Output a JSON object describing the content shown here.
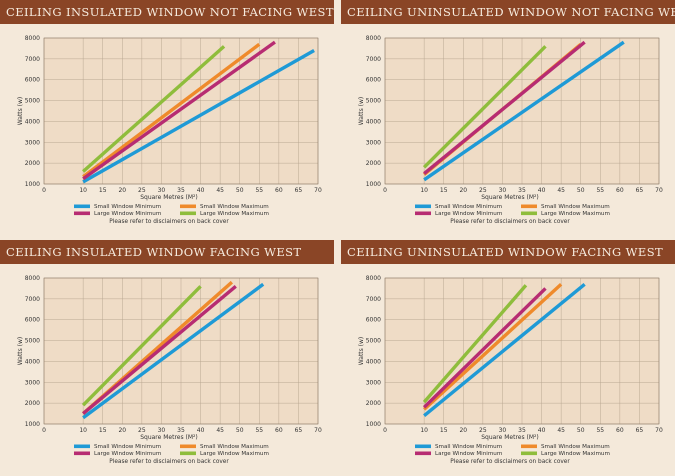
{
  "colors": {
    "small_min": "#1f9ad6",
    "small_max": "#ef8a2b",
    "large_min": "#b72c72",
    "large_max": "#8fbd3c",
    "banner": "#8a4526",
    "plot_bg": "#efdcc6",
    "grid": "#b9a792"
  },
  "legend": {
    "small_min": "Small Window Minimum",
    "small_max": "Small Window Maximum",
    "large_min": "Large Window Minimum",
    "large_max": "Large Window Maximum"
  },
  "note": "Please refer to disclaimers on back cover",
  "chart_data": [
    {
      "type": "line",
      "title": "CEILING INSULATED WINDOW NOT FACING WEST",
      "xlabel": "Square Metres (M²)",
      "ylabel": "Watts (w)",
      "xlim": [
        0,
        70
      ],
      "ylim": [
        1000,
        8000
      ],
      "xticks": [
        "0",
        "10",
        "15",
        "20",
        "25",
        "30",
        "35",
        "40",
        "45",
        "50",
        "55",
        "60",
        "65",
        "70"
      ],
      "yticks": [
        "1000",
        "2000",
        "3000",
        "4000",
        "5000",
        "6000",
        "7000",
        "8000"
      ],
      "series": [
        {
          "name": "Small Window Minimum",
          "key": "small_min",
          "x": [
            10,
            69
          ],
          "y": [
            1100,
            7400
          ]
        },
        {
          "name": "Small Window Maximum",
          "key": "small_max",
          "x": [
            10,
            55
          ],
          "y": [
            1350,
            7700
          ]
        },
        {
          "name": "Large Window Minimum",
          "key": "large_min",
          "x": [
            10,
            59
          ],
          "y": [
            1250,
            7800
          ]
        },
        {
          "name": "Large Window Maximum",
          "key": "large_max",
          "x": [
            10,
            46
          ],
          "y": [
            1600,
            7600
          ]
        }
      ]
    },
    {
      "type": "line",
      "title": "CEILING UNINSULATED WINDOW NOT FACING WEST",
      "xlabel": "Square Metres (M²)",
      "ylabel": "Watts (w)",
      "xlim": [
        0,
        70
      ],
      "ylim": [
        1000,
        8000
      ],
      "xticks": [
        "0",
        "10",
        "15",
        "20",
        "25",
        "30",
        "35",
        "40",
        "45",
        "50",
        "55",
        "60",
        "65",
        "70"
      ],
      "yticks": [
        "1000",
        "2000",
        "3000",
        "4000",
        "5000",
        "6000",
        "7000",
        "8000"
      ],
      "series": [
        {
          "name": "Small Window Minimum",
          "key": "small_min",
          "x": [
            10,
            61
          ],
          "y": [
            1200,
            7800
          ]
        },
        {
          "name": "Small Window Maximum",
          "key": "small_max",
          "x": [
            10,
            50
          ],
          "y": [
            1450,
            7700
          ]
        },
        {
          "name": "Large Window Minimum",
          "key": "large_min",
          "x": [
            10,
            51
          ],
          "y": [
            1500,
            7800
          ]
        },
        {
          "name": "Large Window Maximum",
          "key": "large_max",
          "x": [
            10,
            41
          ],
          "y": [
            1800,
            7600
          ]
        }
      ]
    },
    {
      "type": "line",
      "title": "CEILING INSULATED WINDOW FACING WEST",
      "xlabel": "Square Metres (M²)",
      "ylabel": "Watts (w)",
      "xlim": [
        0,
        70
      ],
      "ylim": [
        1000,
        8000
      ],
      "xticks": [
        "0",
        "10",
        "15",
        "20",
        "25",
        "30",
        "35",
        "40",
        "45",
        "50",
        "55",
        "60",
        "65",
        "70"
      ],
      "yticks": [
        "1000",
        "2000",
        "3000",
        "4000",
        "5000",
        "6000",
        "7000",
        "8000"
      ],
      "series": [
        {
          "name": "Small Window Minimum",
          "key": "small_min",
          "x": [
            10,
            56
          ],
          "y": [
            1300,
            7700
          ]
        },
        {
          "name": "Small Window Maximum",
          "key": "small_max",
          "x": [
            10,
            48
          ],
          "y": [
            1500,
            7800
          ]
        },
        {
          "name": "Large Window Minimum",
          "key": "large_min",
          "x": [
            10,
            49
          ],
          "y": [
            1500,
            7600
          ]
        },
        {
          "name": "Large Window Maximum",
          "key": "large_max",
          "x": [
            10,
            40
          ],
          "y": [
            1900,
            7600
          ]
        }
      ]
    },
    {
      "type": "line",
      "title": "CEILING UNINSULATED WINDOW FACING WEST",
      "xlabel": "Square Metres (M²)",
      "ylabel": "Watts (w)",
      "xlim": [
        0,
        70
      ],
      "ylim": [
        1000,
        8000
      ],
      "xticks": [
        "0",
        "10",
        "15",
        "20",
        "25",
        "30",
        "35",
        "40",
        "45",
        "50",
        "55",
        "60",
        "65",
        "70"
      ],
      "yticks": [
        "1000",
        "2000",
        "3000",
        "4000",
        "5000",
        "6000",
        "7000",
        "8000"
      ],
      "series": [
        {
          "name": "Small Window Minimum",
          "key": "small_min",
          "x": [
            10,
            51
          ],
          "y": [
            1400,
            7700
          ]
        },
        {
          "name": "Small Window Maximum",
          "key": "small_max",
          "x": [
            10,
            45
          ],
          "y": [
            1700,
            7700
          ]
        },
        {
          "name": "Large Window Minimum",
          "key": "large_min",
          "x": [
            10,
            41
          ],
          "y": [
            1800,
            7500
          ]
        },
        {
          "name": "Large Window Maximum",
          "key": "large_max",
          "x": [
            10,
            36
          ],
          "y": [
            2050,
            7650
          ]
        }
      ]
    }
  ]
}
